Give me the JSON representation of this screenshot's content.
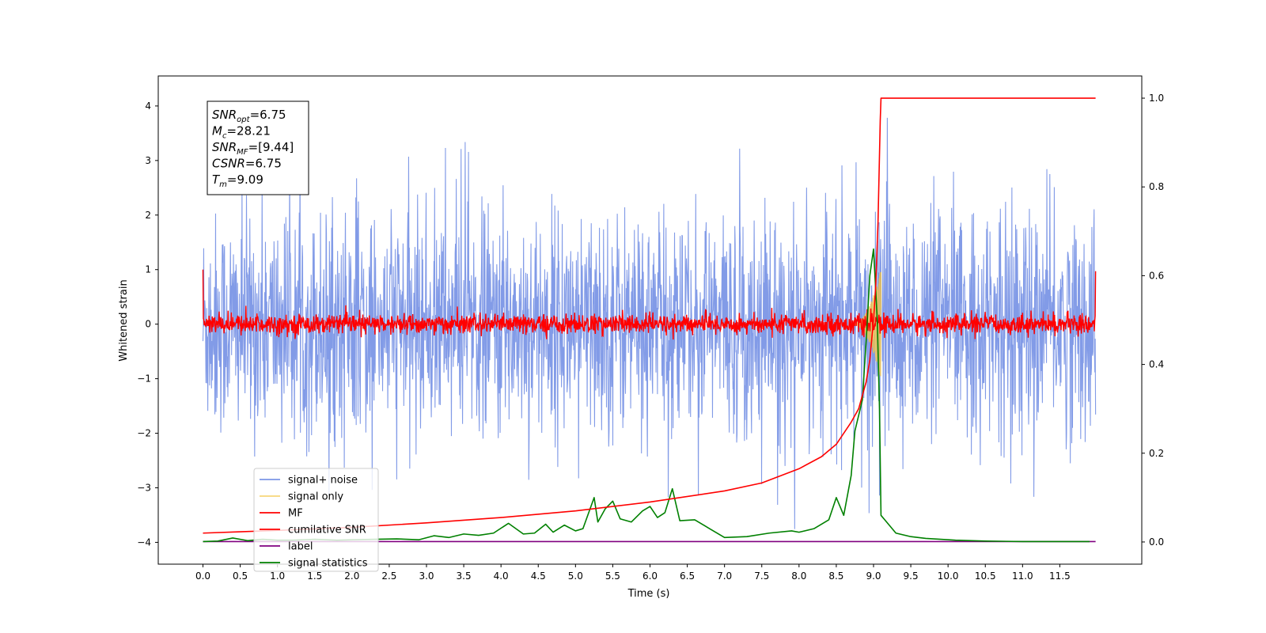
{
  "chart_data": {
    "type": "line",
    "xlabel": "Time (s)",
    "ylabel": "Whitened strain",
    "xlim": [
      -0.6,
      12.6
    ],
    "ylim": [
      -4.4,
      4.55
    ],
    "y2lim": [
      -0.05,
      1.05
    ],
    "x_ticks": [
      0.0,
      0.5,
      1.0,
      1.5,
      2.0,
      2.5,
      3.0,
      3.5,
      4.0,
      4.5,
      5.0,
      5.5,
      6.0,
      6.5,
      7.0,
      7.5,
      8.0,
      8.5,
      9.0,
      9.5,
      10.0,
      10.5,
      11.0,
      11.5
    ],
    "x_tick_labels": [
      "0.0",
      "0.5",
      "1.0",
      "1.5",
      "2.0",
      "2.5",
      "3.0",
      "3.5",
      "4.0",
      "4.5",
      "5.0",
      "5.5",
      "6.0",
      "6.5",
      "7.0",
      "7.5",
      "8.0",
      "8.5",
      "9.0",
      "9.5",
      "10.0",
      "10.5",
      "11.0",
      "11.5"
    ],
    "y_ticks": [
      -4,
      -3,
      -2,
      -1,
      0,
      1,
      2,
      3,
      4
    ],
    "y_tick_labels": [
      "−4",
      "−3",
      "−2",
      "−1",
      "0",
      "1",
      "2",
      "3",
      "4"
    ],
    "y2_ticks": [
      0.0,
      0.2,
      0.4,
      0.6,
      0.8,
      1.0
    ],
    "y2_tick_labels": [
      "0.0",
      "0.2",
      "0.4",
      "0.6",
      "0.8",
      "1.0"
    ],
    "grid": false,
    "legend_placement": "lower-left",
    "annotation": {
      "lines": [
        {
          "base": "SNR",
          "sub": "opt",
          "value": "=6.75"
        },
        {
          "base": "M",
          "sub": "c",
          "value": "=28.21"
        },
        {
          "base": "SNR",
          "sub": "MF",
          "value": "=[9.44]"
        },
        {
          "base": "CSNR",
          "sub": "",
          "value": "=6.75"
        },
        {
          "base": "T",
          "sub": "m",
          "value": "=9.09"
        }
      ]
    },
    "series": [
      {
        "name": "signal+ noise",
        "color": "#7b96e6",
        "axis": "left",
        "style": "noise",
        "x_range": [
          0.0,
          11.98
        ],
        "mean": 0.0,
        "amplitude": 1.0,
        "peak_max": 4.15,
        "peak_min": -3.9
      },
      {
        "name": "signal only",
        "color": "#f5c542",
        "axis": "left",
        "style": "chirp",
        "x_range": [
          8.7,
          9.1
        ],
        "peak_amplitude": 1.0
      },
      {
        "name": "MF",
        "color": "#ff0000",
        "axis": "left",
        "style": "noise",
        "x_range": [
          0.0,
          11.98
        ],
        "mean": 0.0,
        "amplitude": 0.12,
        "start_value": 1.0,
        "end_value": 0.97
      },
      {
        "name": "cumilative SNR",
        "color": "#ff0000",
        "axis": "right",
        "x": [
          0.0,
          0.5,
          1.0,
          2.0,
          3.0,
          4.0,
          5.0,
          6.0,
          7.0,
          7.5,
          8.0,
          8.3,
          8.5,
          8.7,
          8.8,
          8.9,
          8.95,
          9.0,
          9.03,
          9.06,
          9.09,
          9.1,
          11.98
        ],
        "values": [
          0.02,
          0.023,
          0.026,
          0.033,
          0.043,
          0.055,
          0.07,
          0.09,
          0.115,
          0.133,
          0.165,
          0.192,
          0.22,
          0.27,
          0.3,
          0.36,
          0.41,
          0.5,
          0.58,
          0.72,
          0.95,
          1.0,
          1.0
        ]
      },
      {
        "name": "label",
        "color": "#800080",
        "axis": "right",
        "x": [
          0.0,
          11.98
        ],
        "values": [
          0.001,
          0.001
        ]
      },
      {
        "name": "signal statistics",
        "color": "#008000",
        "axis": "right",
        "x": [
          0.0,
          0.2,
          0.4,
          0.6,
          0.8,
          1.0,
          1.2,
          1.5,
          1.8,
          2.0,
          2.3,
          2.6,
          2.9,
          3.1,
          3.3,
          3.5,
          3.7,
          3.9,
          4.1,
          4.2,
          4.3,
          4.45,
          4.6,
          4.7,
          4.85,
          5.0,
          5.1,
          5.25,
          5.3,
          5.4,
          5.5,
          5.6,
          5.75,
          5.9,
          6.0,
          6.1,
          6.2,
          6.3,
          6.4,
          6.6,
          6.8,
          7.0,
          7.3,
          7.6,
          7.9,
          8.0,
          8.2,
          8.4,
          8.5,
          8.55,
          8.6,
          8.7,
          8.75,
          8.85,
          8.9,
          8.95,
          9.0,
          9.05,
          9.08,
          9.1,
          9.15,
          9.3,
          9.5,
          9.7,
          9.9,
          10.1,
          10.5,
          11.0,
          11.5,
          11.9
        ],
        "values": [
          0.001,
          0.002,
          0.009,
          0.003,
          0.006,
          0.004,
          0.004,
          0.006,
          0.004,
          0.005,
          0.006,
          0.007,
          0.005,
          0.014,
          0.01,
          0.018,
          0.015,
          0.02,
          0.042,
          0.03,
          0.018,
          0.02,
          0.04,
          0.022,
          0.038,
          0.025,
          0.03,
          0.1,
          0.045,
          0.075,
          0.092,
          0.052,
          0.045,
          0.07,
          0.08,
          0.055,
          0.066,
          0.12,
          0.048,
          0.05,
          0.03,
          0.01,
          0.012,
          0.02,
          0.025,
          0.022,
          0.03,
          0.05,
          0.1,
          0.08,
          0.06,
          0.15,
          0.25,
          0.32,
          0.45,
          0.6,
          0.66,
          0.5,
          0.3,
          0.06,
          0.05,
          0.02,
          0.012,
          0.008,
          0.006,
          0.004,
          0.002,
          0.001,
          0.001,
          0.001
        ]
      }
    ]
  }
}
